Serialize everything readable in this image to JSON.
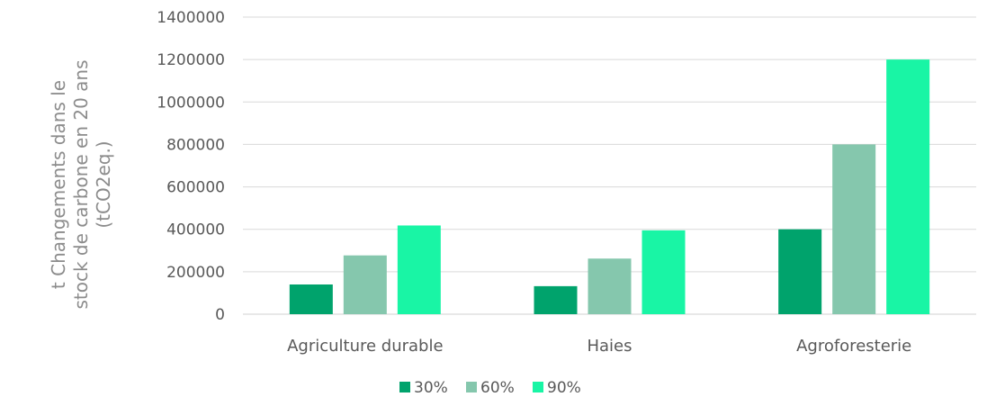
{
  "chart_data": {
    "type": "bar",
    "title": "",
    "xlabel": "",
    "ylabel_lines": [
      "t Changements dans le",
      "stock de carbone en 20 ans",
      "(tCO2eq.)"
    ],
    "categories": [
      "Agriculture durable",
      "Haies",
      "Agroforesterie"
    ],
    "series": [
      {
        "name": "30%",
        "color": "#00a36c",
        "values": [
          140000,
          132000,
          400000
        ]
      },
      {
        "name": "60%",
        "color": "#85c7ad",
        "values": [
          277000,
          262000,
          800000
        ]
      },
      {
        "name": "90%",
        "color": "#19f5a5",
        "values": [
          418000,
          395000,
          1200000
        ]
      }
    ],
    "ylim": [
      0,
      1400000
    ],
    "yticks": [
      0,
      200000,
      400000,
      600000,
      800000,
      1000000,
      1200000,
      1400000
    ],
    "ytick_labels": [
      "0",
      "200000",
      "400000",
      "600000",
      "800000",
      "1000000",
      "1200000",
      "1400000"
    ],
    "grid": true,
    "legend_position": "bottom"
  }
}
